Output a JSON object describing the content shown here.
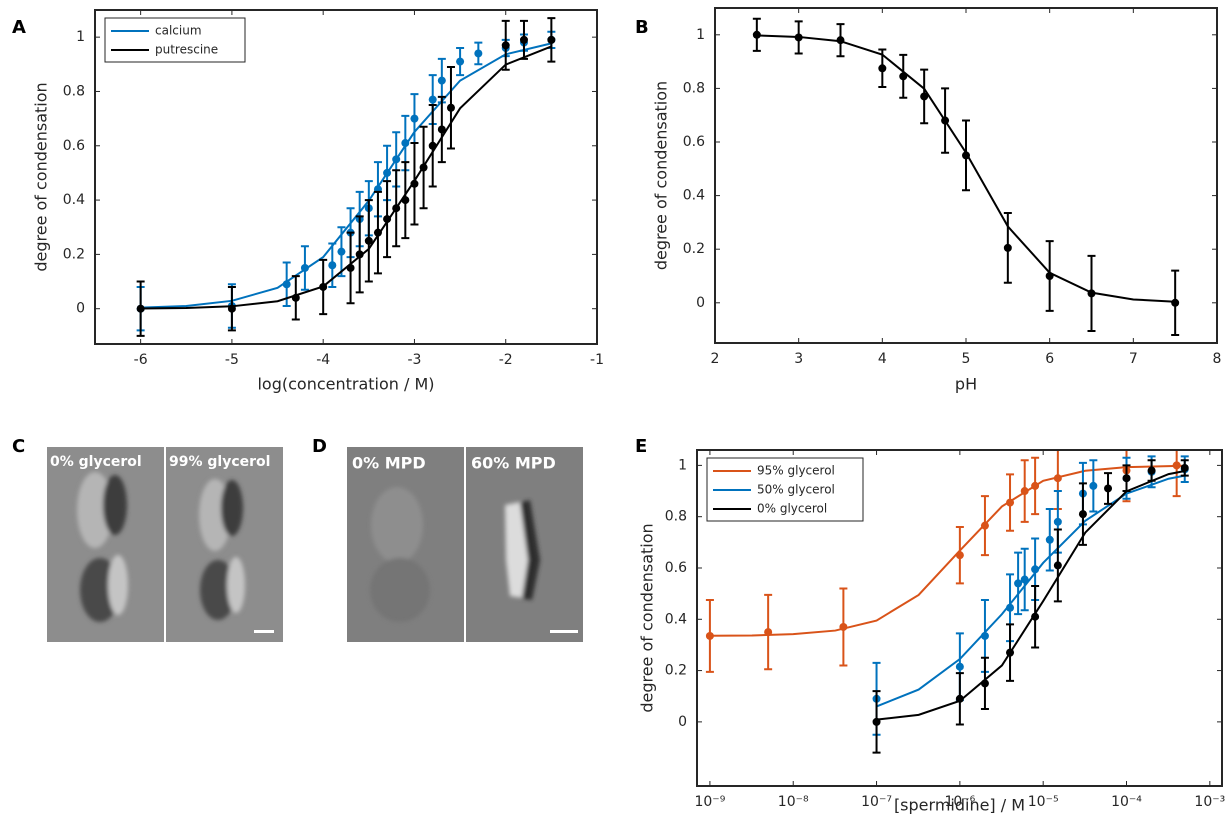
{
  "chart_data": [
    {
      "type": "scatter",
      "panel": "A",
      "xlabel": "log(concentration / M)",
      "ylabel": "degree of condensation",
      "xlim": [
        -6.5,
        -1
      ],
      "ylim": [
        -0.13,
        1.1
      ],
      "xticks": [
        -6,
        -5,
        -4,
        -3,
        -2,
        -1
      ],
      "yticks": [
        0,
        0.2,
        0.4,
        0.6,
        0.8,
        1
      ],
      "legend": "upper left",
      "series": [
        {
          "name": "calcium",
          "color": "#0072bd",
          "x": [
            -6,
            -5,
            -4.4,
            -4.2,
            -3.9,
            -3.8,
            -3.7,
            -3.6,
            -3.5,
            -3.4,
            -3.3,
            -3.2,
            -3.1,
            -3.0,
            -2.8,
            -2.7,
            -2.5,
            -2.3,
            -2,
            -1.8,
            -1.5
          ],
          "values": [
            0,
            0.01,
            0.09,
            0.15,
            0.16,
            0.21,
            0.28,
            0.33,
            0.37,
            0.44,
            0.5,
            0.55,
            0.61,
            0.7,
            0.77,
            0.84,
            0.91,
            0.94,
            0.96,
            0.98,
            0.99
          ],
          "errors": [
            0.08,
            0.08,
            0.08,
            0.08,
            0.08,
            0.09,
            0.09,
            0.1,
            0.1,
            0.1,
            0.1,
            0.1,
            0.1,
            0.09,
            0.09,
            0.08,
            0.05,
            0.04,
            0.03,
            0.03,
            0.03
          ],
          "fit": {
            "x": [
              -6,
              -5.5,
              -5,
              -4.5,
              -4,
              -3.5,
              -3,
              -2.5,
              -2,
              -1.5
            ],
            "values": [
              0.004,
              0.01,
              0.029,
              0.077,
              0.19,
              0.398,
              0.651,
              0.84,
              0.937,
              0.977
            ]
          }
        },
        {
          "name": "putrescine",
          "color": "#000000",
          "x": [
            -6,
            -5,
            -4.3,
            -4,
            -3.7,
            -3.6,
            -3.5,
            -3.4,
            -3.3,
            -3.2,
            -3.1,
            -3.0,
            -2.9,
            -2.8,
            -2.7,
            -2.6,
            -2,
            -1.8,
            -1.5
          ],
          "values": [
            0,
            0,
            0.04,
            0.08,
            0.15,
            0.2,
            0.25,
            0.28,
            0.33,
            0.37,
            0.4,
            0.46,
            0.52,
            0.6,
            0.66,
            0.74,
            0.97,
            0.99,
            0.99
          ],
          "errors": [
            0.1,
            0.08,
            0.08,
            0.1,
            0.13,
            0.14,
            0.15,
            0.15,
            0.14,
            0.14,
            0.14,
            0.15,
            0.15,
            0.15,
            0.12,
            0.15,
            0.09,
            0.07,
            0.08
          ],
          "fit": {
            "x": [
              -6,
              -5.5,
              -5,
              -4.5,
              -4,
              -3.5,
              -3,
              -2.5,
              -2,
              -1.5
            ],
            "values": [
              0.0009,
              0.0028,
              0.0088,
              0.0274,
              0.082,
              0.22,
              0.471,
              0.738,
              0.899,
              0.966
            ]
          }
        }
      ]
    },
    {
      "type": "scatter",
      "panel": "B",
      "xlabel": "pH",
      "ylabel": "degree of condensation",
      "xlim": [
        2,
        8
      ],
      "ylim": [
        -0.15,
        1.1
      ],
      "xticks": [
        2,
        3,
        4,
        5,
        6,
        7,
        8
      ],
      "yticks": [
        0,
        0.2,
        0.4,
        0.6,
        0.8,
        1
      ],
      "series": [
        {
          "color": "#000000",
          "x": [
            2.5,
            3,
            3.5,
            4,
            4.25,
            4.5,
            4.75,
            5,
            5.5,
            6,
            6.5,
            7.5
          ],
          "values": [
            1,
            0.99,
            0.98,
            0.875,
            0.845,
            0.77,
            0.68,
            0.55,
            0.205,
            0.1,
            0.035,
            0
          ],
          "errors": [
            0.06,
            0.06,
            0.06,
            0.07,
            0.08,
            0.1,
            0.12,
            0.13,
            0.13,
            0.13,
            0.14,
            0.12
          ],
          "fit": {
            "x": [
              2.5,
              3,
              3.5,
              4,
              4.5,
              5,
              5.5,
              6,
              6.5,
              7,
              7.5
            ],
            "values": [
              0.9975,
              0.992,
              0.976,
              0.926,
              0.799,
              0.56,
              0.285,
              0.112,
              0.038,
              0.0125,
              0.004
            ]
          }
        }
      ]
    },
    {
      "type": "scatter",
      "panel": "E",
      "xlabel": "[spermidine] / M",
      "ylabel": "degree of condensation",
      "xscale": "log",
      "xlim": [
        7e-10,
        0.0014
      ],
      "ylim": [
        -0.25,
        1.06
      ],
      "xticks": [
        {
          "value": 1e-09,
          "label": "10⁻⁹"
        },
        {
          "value": 1e-08,
          "label": "10⁻⁸"
        },
        {
          "value": 1e-07,
          "label": "10⁻⁷"
        },
        {
          "value": 1e-06,
          "label": "10⁻⁶"
        },
        {
          "value": 1e-05,
          "label": "10⁻⁵"
        },
        {
          "value": 0.0001,
          "label": "10⁻⁴"
        },
        {
          "value": 0.001,
          "label": "10⁻³"
        }
      ],
      "yticks": [
        0,
        0.2,
        0.4,
        0.6,
        0.8,
        1
      ],
      "legend": "upper left",
      "series": [
        {
          "name": "95% glycerol",
          "color": "#d95319",
          "x": [
            1e-09,
            5e-09,
            4e-08,
            1e-06,
            2e-06,
            4e-06,
            6e-06,
            8e-06,
            1.5e-05,
            0.0001,
            0.0004
          ],
          "values": [
            0.335,
            0.35,
            0.37,
            0.65,
            0.765,
            0.855,
            0.9,
            0.92,
            0.95,
            0.98,
            1
          ],
          "errors": [
            0.14,
            0.145,
            0.15,
            0.11,
            0.115,
            0.11,
            0.12,
            0.11,
            0.12,
            0.12,
            0.12
          ],
          "fit": {
            "x": [
              1e-09,
              3.2e-09,
              1e-08,
              3.2e-08,
              1e-07,
              3.2e-07,
              1e-06,
              3.2e-06,
              1e-05,
              3.2e-05,
              0.0001,
              0.00032,
              0.0005
            ],
            "values": [
              0.336,
              0.337,
              0.342,
              0.356,
              0.395,
              0.495,
              0.668,
              0.84,
              0.94,
              0.979,
              0.993,
              0.997,
              0.9987
            ]
          }
        },
        {
          "name": "50% glycerol",
          "color": "#0072bd",
          "x": [
            1e-07,
            1e-06,
            2e-06,
            4e-06,
            5e-06,
            6e-06,
            8e-06,
            1.2e-05,
            1.5e-05,
            3e-05,
            4e-05,
            0.0001,
            0.0002,
            0.0005
          ],
          "values": [
            0.09,
            0.215,
            0.335,
            0.445,
            0.54,
            0.555,
            0.595,
            0.71,
            0.78,
            0.89,
            0.92,
            0.95,
            0.975,
            0.985
          ],
          "errors": [
            0.14,
            0.13,
            0.14,
            0.13,
            0.12,
            0.12,
            0.12,
            0.12,
            0.12,
            0.12,
            0.1,
            0.08,
            0.06,
            0.05
          ],
          "fit": {
            "x": [
              1e-07,
              3.2e-07,
              1e-06,
              3.2e-06,
              1e-05,
              3.2e-05,
              0.0001,
              0.00032,
              0.0005
            ],
            "values": [
              0.06,
              0.126,
              0.245,
              0.42,
              0.62,
              0.784,
              0.89,
              0.948,
              0.96
            ]
          }
        },
        {
          "name": "0% glycerol",
          "color": "#000000",
          "x": [
            1e-07,
            1e-06,
            2e-06,
            4e-06,
            8e-06,
            1.5e-05,
            3e-05,
            6e-05,
            0.0001,
            0.0002,
            0.0005
          ],
          "values": [
            0,
            0.09,
            0.15,
            0.27,
            0.41,
            0.61,
            0.81,
            0.91,
            0.95,
            0.98,
            0.99
          ],
          "errors": [
            0.12,
            0.1,
            0.1,
            0.11,
            0.12,
            0.14,
            0.12,
            0.06,
            0.05,
            0.04,
            0.03
          ],
          "fit": {
            "x": [
              1e-07,
              3.2e-07,
              1e-06,
              3.2e-06,
              1e-05,
              3.2e-05,
              0.0001,
              0.00032,
              0.0005
            ],
            "values": [
              0.0088,
              0.0274,
              0.082,
              0.22,
              0.471,
              0.738,
              0.899,
              0.966,
              0.978
            ]
          }
        }
      ]
    }
  ],
  "images": [
    {
      "panel": "C",
      "labels": [
        "0% glycerol",
        "99% glycerol"
      ]
    },
    {
      "panel": "D",
      "labels": [
        "0% MPD",
        "60% MPD"
      ]
    }
  ]
}
